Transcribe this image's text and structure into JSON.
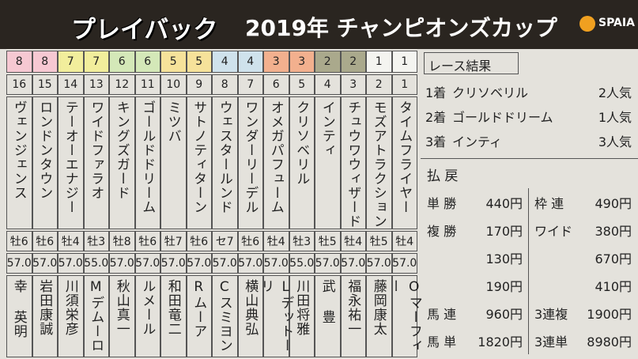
{
  "header": {
    "title_prefix": "プレイバック",
    "title": "2019年 チャンピオンズカップ",
    "logo": "SPAIA"
  },
  "entries": [
    {
      "frame": 8,
      "number": 16,
      "name": "ヴェンジェンス",
      "sex_age": "牡6",
      "weight": "57.0",
      "jockey": "幸 英明"
    },
    {
      "frame": 8,
      "number": 15,
      "name": "ロンドンタウン",
      "sex_age": "牡6",
      "weight": "57.0",
      "jockey": "岩田康誠"
    },
    {
      "frame": 7,
      "number": 14,
      "name": "テーオーエナジー",
      "sex_age": "牡4",
      "weight": "57.0",
      "jockey": "川須栄彦"
    },
    {
      "frame": 7,
      "number": 13,
      "name": "ワイドファラオ",
      "sex_age": "牡3",
      "weight": "55.0",
      "jockey": "Mデムーロ"
    },
    {
      "frame": 6,
      "number": 12,
      "name": "キングズガード",
      "sex_age": "牡8",
      "weight": "57.0",
      "jockey": "秋山真一"
    },
    {
      "frame": 6,
      "number": 11,
      "name": "ゴールドドリーム",
      "sex_age": "牡6",
      "weight": "57.0",
      "jockey": "ルメール"
    },
    {
      "frame": 5,
      "number": 10,
      "name": "ミツバ",
      "sex_age": "牡7",
      "weight": "57.0",
      "jockey": "和田竜二"
    },
    {
      "frame": 5,
      "number": 9,
      "name": "サトノティターン",
      "sex_age": "牡6",
      "weight": "57.0",
      "jockey": "Rムーア"
    },
    {
      "frame": 4,
      "number": 8,
      "name": "ウェスタールンド",
      "sex_age": "セ7",
      "weight": "57.0",
      "jockey": "Cスミヨン"
    },
    {
      "frame": 4,
      "number": 7,
      "name": "ワンダーリーデル",
      "sex_age": "牡6",
      "weight": "57.0",
      "jockey": "横山典弘"
    },
    {
      "frame": 3,
      "number": 6,
      "name": "オメガパフューム",
      "sex_age": "牡4",
      "weight": "57.0",
      "jockey": "Lデットーリ"
    },
    {
      "frame": 3,
      "number": 5,
      "name": "クリソベリル",
      "sex_age": "牡3",
      "weight": "55.0",
      "jockey": "川田将雅"
    },
    {
      "frame": 2,
      "number": 4,
      "name": "インティ",
      "sex_age": "牡5",
      "weight": "57.0",
      "jockey": "武 豊"
    },
    {
      "frame": 2,
      "number": 3,
      "name": "チュウワウィザード",
      "sex_age": "牡4",
      "weight": "57.0",
      "jockey": "福永祐一"
    },
    {
      "frame": 1,
      "number": 2,
      "name": "モズアトラクション",
      "sex_age": "牡5",
      "weight": "57.0",
      "jockey": "藤岡康太"
    },
    {
      "frame": 1,
      "number": 1,
      "name": "タイムフライヤー",
      "sex_age": "牡4",
      "weight": "57.0",
      "jockey": "Oマーフィー"
    }
  ],
  "results": {
    "title": "レース結果",
    "rows": [
      {
        "place": "1着",
        "horse": "クリソベリル",
        "popularity": "2人気"
      },
      {
        "place": "2着",
        "horse": "ゴールドドリーム",
        "popularity": "1人気"
      },
      {
        "place": "3着",
        "horse": "インティ",
        "popularity": "3人気"
      }
    ]
  },
  "payouts": {
    "title": "払 戻",
    "left": [
      {
        "label": "単 勝",
        "values": [
          "440円"
        ]
      },
      {
        "label": "複 勝",
        "values": [
          "170円",
          "130円",
          "190円"
        ]
      },
      {
        "label": "馬 連",
        "values": [
          "960円"
        ]
      },
      {
        "label": "馬 単",
        "values": [
          "1820円"
        ]
      }
    ],
    "right": [
      {
        "label": "枠 連",
        "values": [
          "490円"
        ]
      },
      {
        "label": "ワイド",
        "values": [
          "380円",
          "670円",
          "410円"
        ]
      },
      {
        "label": "3連複",
        "values": [
          "1900円"
        ]
      },
      {
        "label": "3連単",
        "values": [
          "8980円"
        ]
      }
    ]
  }
}
